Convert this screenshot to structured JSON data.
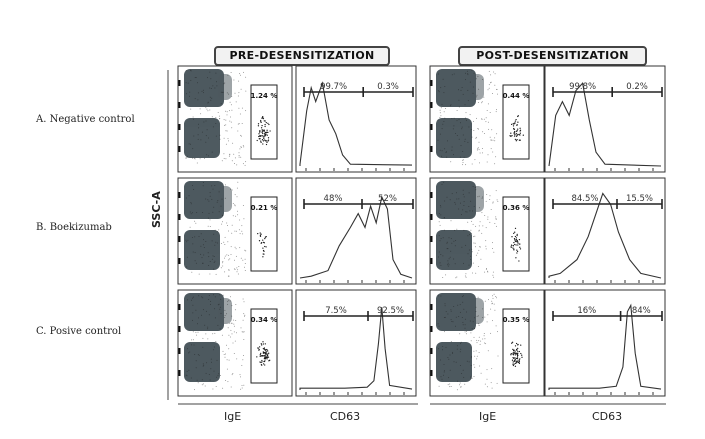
{
  "headers": [
    "PRE-DESENSITIZATION",
    "POST-DESENSITIZATION"
  ],
  "rows": [
    {
      "label": "A.  Negative control",
      "pre": {
        "gate": "1.24 %",
        "left": "99.7%",
        "right": "0.3%"
      },
      "post": {
        "gate": "0.44 %",
        "left": "99.8%",
        "right": "0.2%"
      }
    },
    {
      "label": "B.  Boekizumab",
      "pre": {
        "gate": "0.21 %",
        "left": "48%",
        "right": "52%"
      },
      "post": {
        "gate": "0.36 %",
        "left": "84.5%",
        "right": "15.5%"
      }
    },
    {
      "label": "C.  Posive control",
      "pre": {
        "gate": "0.34 %",
        "left": "7.5%",
        "right": "92.5%"
      },
      "post": {
        "gate": "0.35 %",
        "left": "16%",
        "right": "84%"
      }
    }
  ],
  "y_axis_label": "SSC-A",
  "x_axis_labels": [
    "IgE",
    "CD63",
    "IgE",
    "CD63"
  ]
}
